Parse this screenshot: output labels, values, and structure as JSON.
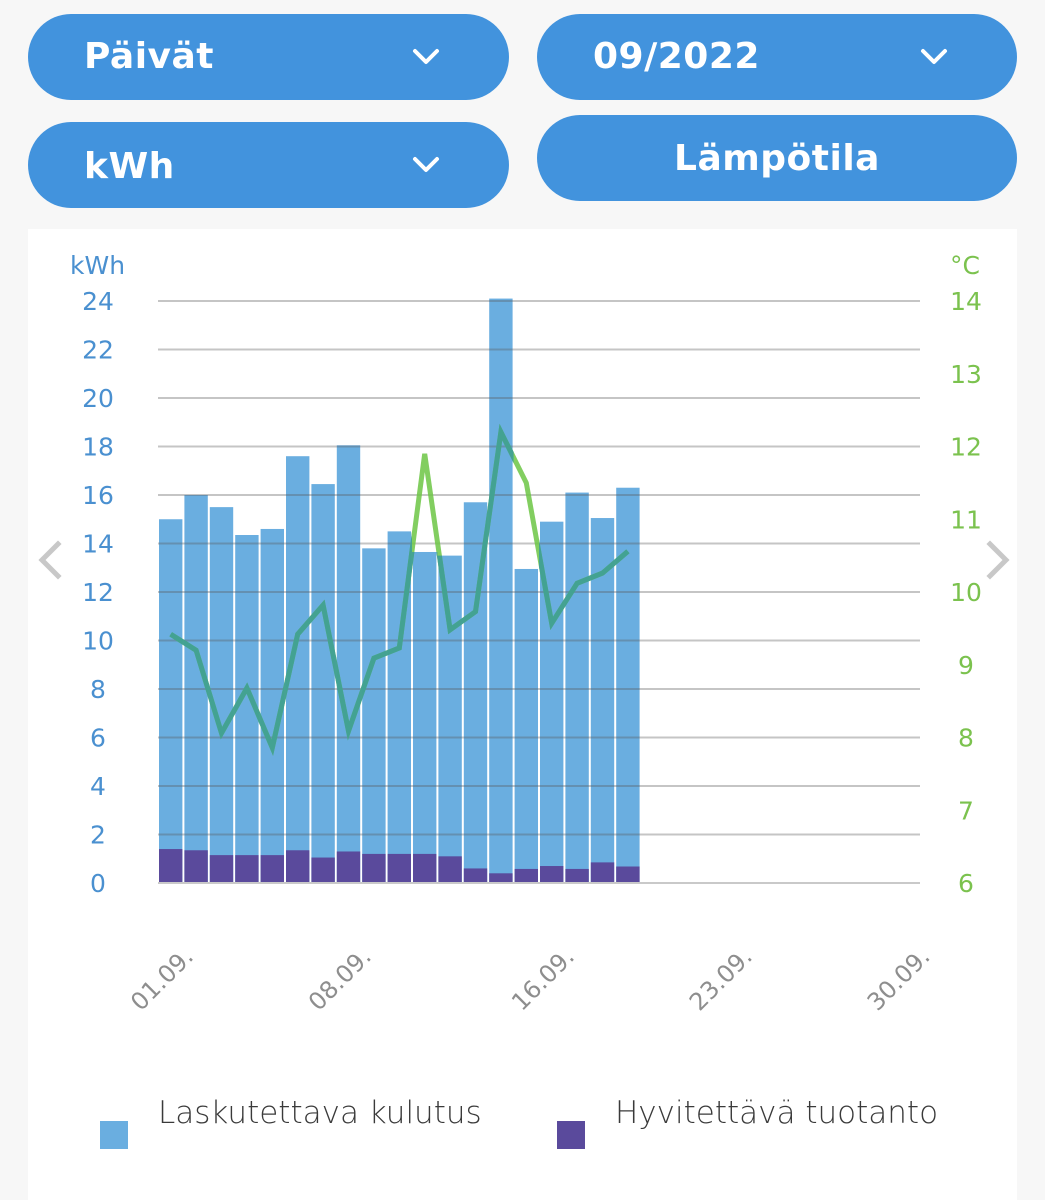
{
  "controls": {
    "period_select": "Päivät",
    "month_select": "09/2022",
    "unit_select": "kWh",
    "temperature_button": "Lämpötila"
  },
  "colors": {
    "button_bg": "#4293dd",
    "consumption": "#6aaee0",
    "production": "#5a4a9c",
    "temperature_line": "#6cc644",
    "left_axis": "#4a90d0",
    "right_axis": "#7bc24e",
    "x_labels": "#8e8e8e",
    "nav_arrow": "#c8c8c8"
  },
  "icons": {
    "dropdown": "chevron-down-icon",
    "prev": "chevron-left-icon",
    "next": "chevron-right-icon"
  },
  "chart_data": {
    "type": "bar",
    "stacked": true,
    "title": "",
    "xlabel": "",
    "ylabel": "kWh",
    "y2label": "°C",
    "ylim": [
      0,
      24
    ],
    "y2lim": [
      6,
      14
    ],
    "yticks": [
      "0",
      "2",
      "4",
      "6",
      "8",
      "10",
      "12",
      "14",
      "16",
      "18",
      "20",
      "22",
      "24"
    ],
    "y2ticks": [
      "6",
      "7",
      "8",
      "9",
      "10",
      "11",
      "12",
      "13",
      "14"
    ],
    "xticks": [
      {
        "day": 1,
        "label": "01.09."
      },
      {
        "day": 8,
        "label": "08.09."
      },
      {
        "day": 16,
        "label": "16.09."
      },
      {
        "day": 23,
        "label": "23.09."
      },
      {
        "day": 30,
        "label": "30.09."
      }
    ],
    "days_in_month": 30,
    "x": [
      1,
      2,
      3,
      4,
      5,
      6,
      7,
      8,
      9,
      10,
      11,
      12,
      13,
      14,
      15,
      16,
      17,
      18,
      19
    ],
    "grid": true,
    "legend_position": "bottom",
    "series": [
      {
        "name": "Laskutettava kulutus",
        "type": "bar",
        "axis": "left",
        "values": [
          15.0,
          16.0,
          15.5,
          14.35,
          14.6,
          17.6,
          16.45,
          18.05,
          13.8,
          14.5,
          13.65,
          13.5,
          15.7,
          24.1,
          12.95,
          14.9,
          16.1,
          15.05,
          16.3
        ]
      },
      {
        "name": "Hyvitettävä tuotanto",
        "type": "bar",
        "axis": "left",
        "values": [
          1.4,
          1.35,
          1.15,
          1.15,
          1.15,
          1.35,
          1.05,
          1.3,
          1.2,
          1.2,
          1.2,
          1.1,
          0.6,
          0.4,
          0.58,
          0.7,
          0.58,
          0.85,
          0.68
        ]
      },
      {
        "name": "Lämpötila",
        "type": "line",
        "axis": "right",
        "values": [
          9.42,
          9.2,
          8.06,
          8.68,
          7.86,
          9.42,
          9.82,
          8.09,
          9.09,
          9.23,
          11.9,
          9.48,
          9.73,
          12.2,
          11.5,
          9.57,
          10.12,
          10.26,
          10.56
        ]
      }
    ]
  }
}
